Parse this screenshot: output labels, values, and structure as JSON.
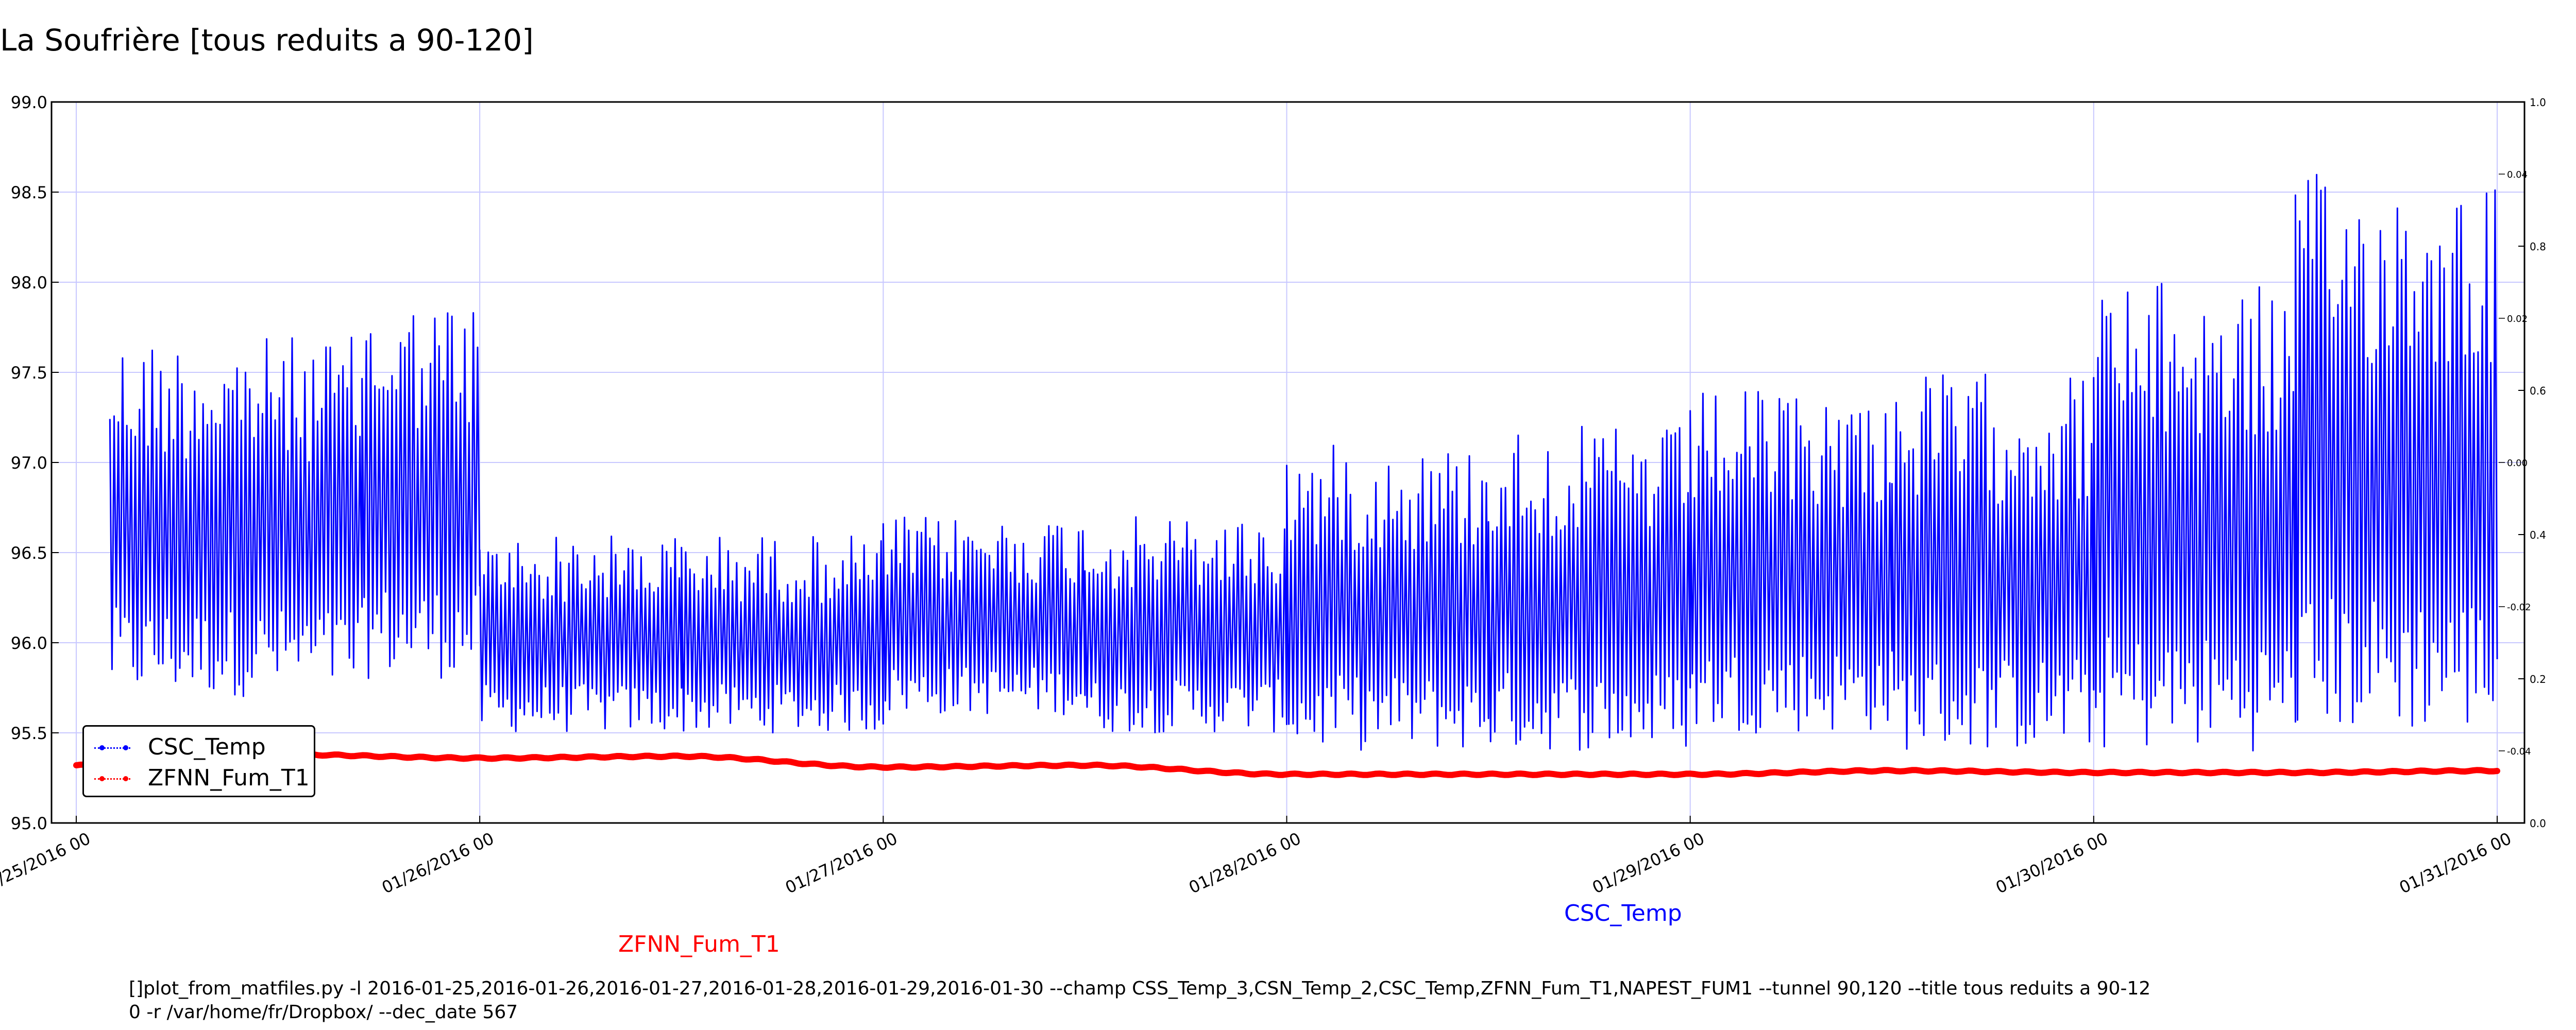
{
  "title": "La Soufrière [tous reduits a 90-120]",
  "command_line": [
    "[]plot_from_matfiles.py -l 2016-01-25,2016-01-26,2016-01-27,2016-01-28,2016-01-29,2016-01-30 --champ CSS_Temp_3,CSN_Temp_2,CSC_Temp,ZFNN_Fum_T1,NAPEST_FUM1 --tunnel 90,120 --title tous reduits a 90-12",
    "0 -r /var/home/fr/Dropbox/ --dec_date 567"
  ],
  "axis_labels": {
    "red": "ZFNN_Fum_T1",
    "blue": "CSC_Temp"
  },
  "colors": {
    "csc_temp": "#0000ff",
    "zfnn_fum_t1": "#ff0000",
    "grid": "#c8c8ff"
  },
  "legend": {
    "placement": "lower-left",
    "items": [
      {
        "label": "CSC_Temp",
        "color": "#0000ff"
      },
      {
        "label": "ZFNN_Fum_T1",
        "color": "#ff0000"
      }
    ]
  },
  "chart_data": {
    "type": "line",
    "grid": true,
    "x_ticks": [
      "01/25/2016 00",
      "01/26/2016 00",
      "01/27/2016 00",
      "01/28/2016 00",
      "01/29/2016 00",
      "01/30/2016 00",
      "01/31/2016 00"
    ],
    "y_left": {
      "lim": [
        95.0,
        99.0
      ],
      "ticks": [
        "95.0",
        "95.5",
        "96.0",
        "96.5",
        "97.0",
        "97.5",
        "98.0",
        "98.5",
        "99.0"
      ]
    },
    "y_right_outer": {
      "lim": [
        0.0,
        1.0
      ],
      "ticks": [
        "0.0",
        "0.2",
        "0.4",
        "0.6",
        "0.8",
        "1.0"
      ]
    },
    "y_right_inner": {
      "ticks": [
        "-0.04",
        "-0.02",
        "0.00",
        "0.02",
        "0.04"
      ]
    },
    "series": [
      {
        "name": "CSC_Temp",
        "color": "#0000ff",
        "segments": [
          {
            "x": [
              "2016-01-25 02:00",
              "2016-01-25 17:00"
            ],
            "low": 95.7,
            "high": 97.7
          },
          {
            "x": [
              "2016-01-25 17:00",
              "2016-01-26 00:00"
            ],
            "low": 95.8,
            "high": 97.9
          },
          {
            "x": [
              "2016-01-26 00:00",
              "2016-01-26 12:00"
            ],
            "low": 95.5,
            "high": 96.6
          },
          {
            "x": [
              "2016-01-26 12:00",
              "2016-01-27 00:00"
            ],
            "low": 95.5,
            "high": 96.6
          },
          {
            "x": [
              "2016-01-27 00:00",
              "2016-01-27 12:00"
            ],
            "low": 95.6,
            "high": 96.7
          },
          {
            "x": [
              "2016-01-27 12:00",
              "2016-01-28 00:00"
            ],
            "low": 95.5,
            "high": 96.7
          },
          {
            "x": [
              "2016-01-28 00:00",
              "2016-01-28 12:00"
            ],
            "low": 95.4,
            "high": 97.1
          },
          {
            "x": [
              "2016-01-28 12:00",
              "2016-01-29 00:00"
            ],
            "low": 95.4,
            "high": 97.2
          },
          {
            "x": [
              "2016-01-29 00:00",
              "2016-01-29 12:00"
            ],
            "low": 95.5,
            "high": 97.4
          },
          {
            "x": [
              "2016-01-29 12:00",
              "2016-01-30 00:00"
            ],
            "low": 95.4,
            "high": 97.5
          },
          {
            "x": [
              "2016-01-30 00:00",
              "2016-01-30 12:00"
            ],
            "low": 95.4,
            "high": 98.0
          },
          {
            "x": [
              "2016-01-30 12:00",
              "2016-01-31 00:00"
            ],
            "low": 95.5,
            "high": 98.6
          }
        ]
      },
      {
        "name": "ZFNN_Fum_T1",
        "color": "#ff0000",
        "x": [
          "2016-01-25 00:00",
          "2016-01-25 12:00",
          "2016-01-26 00:00",
          "2016-01-26 12:00",
          "2016-01-27 00:00",
          "2016-01-27 12:00",
          "2016-01-28 00:00",
          "2016-01-28 12:00",
          "2016-01-29 00:00",
          "2016-01-29 12:00",
          "2016-01-30 00:00",
          "2016-01-30 12:00",
          "2016-01-31 00:00"
        ],
        "values": [
          95.32,
          95.38,
          95.36,
          95.37,
          95.31,
          95.32,
          95.27,
          95.27,
          95.27,
          95.29,
          95.28,
          95.28,
          95.29
        ]
      }
    ]
  }
}
